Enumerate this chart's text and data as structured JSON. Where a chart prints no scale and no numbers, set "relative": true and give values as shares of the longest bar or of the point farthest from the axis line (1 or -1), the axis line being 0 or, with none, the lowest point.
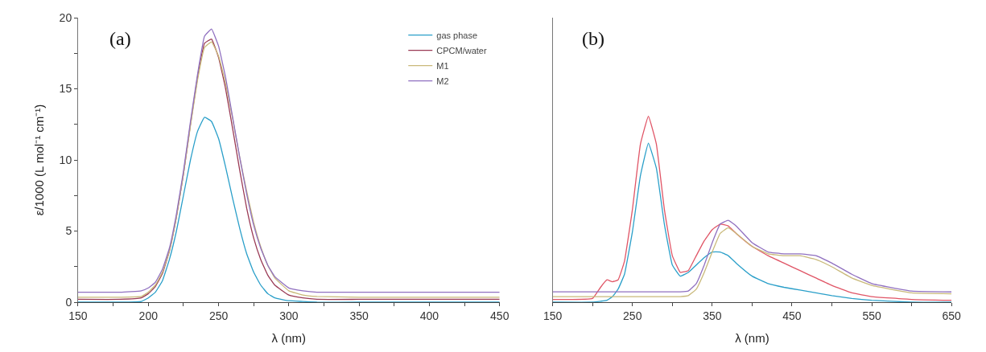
{
  "chart_data": [
    {
      "type": "line",
      "xlabel": "λ (nm)",
      "ylabel": "ε/1000 (L mol⁻¹ cm⁻¹)",
      "annotations": [
        "(a)"
      ],
      "legend": "top right",
      "xlim": [
        150,
        450
      ],
      "xticks": [
        150,
        {
          "value": 175,
          "label": null
        },
        200,
        {
          "value": 225,
          "label": null
        },
        250,
        {
          "value": 275,
          "label": null
        },
        300,
        {
          "value": 325,
          "label": null
        },
        350,
        {
          "value": 375,
          "label": null
        },
        400,
        {
          "value": 425,
          "label": null
        },
        450
      ],
      "ylim": [
        0,
        20
      ],
      "yticks": [
        0,
        {
          "value": 2.5,
          "label": null
        },
        5,
        {
          "value": 7.5,
          "label": null
        },
        10,
        {
          "value": 12.5,
          "label": null
        },
        15,
        {
          "value": 17.5,
          "label": null
        },
        20
      ],
      "x": [
        150,
        180,
        195,
        200,
        205,
        210,
        215,
        220,
        225,
        230,
        235,
        240,
        245,
        250,
        255,
        260,
        265,
        270,
        275,
        280,
        285,
        290,
        300,
        310,
        320,
        350,
        400,
        450
      ],
      "series": [
        {
          "name": "gas phase",
          "color": "#2a9fc9",
          "values": [
            0,
            0,
            0.05,
            0.3,
            0.7,
            1.5,
            3.0,
            5.0,
            7.5,
            10.0,
            12.0,
            13.0,
            12.7,
            11.5,
            9.5,
            7.3,
            5.2,
            3.4,
            2.1,
            1.2,
            0.6,
            0.3,
            0.1,
            0.05,
            0,
            0,
            0,
            0
          ]
        },
        {
          "name": "CPCM/water",
          "color": "#9a3a55",
          "values": [
            0.2,
            0.2,
            0.3,
            0.6,
            1.1,
            2.0,
            3.6,
            6.0,
            9.0,
            12.5,
            15.8,
            18.2,
            18.5,
            17.2,
            15.0,
            12.2,
            9.3,
            6.6,
            4.5,
            3.0,
            1.9,
            1.2,
            0.5,
            0.3,
            0.2,
            0.2,
            0.2,
            0.2
          ]
        },
        {
          "name": "M1",
          "color": "#c9b97a",
          "values": [
            0.35,
            0.35,
            0.4,
            0.7,
            1.2,
            2.1,
            3.6,
            6.0,
            9.0,
            12.4,
            15.6,
            17.9,
            18.3,
            17.3,
            15.4,
            12.9,
            10.2,
            7.8,
            5.6,
            3.9,
            2.6,
            1.7,
            0.8,
            0.5,
            0.4,
            0.35,
            0.35,
            0.35
          ]
        },
        {
          "name": "M2",
          "color": "#9070c0",
          "values": [
            0.7,
            0.7,
            0.8,
            1.0,
            1.4,
            2.3,
            3.8,
            6.2,
            9.2,
            12.7,
            16.0,
            18.7,
            19.2,
            18.0,
            15.8,
            13.0,
            10.2,
            7.6,
            5.4,
            3.8,
            2.6,
            1.8,
            1.0,
            0.8,
            0.7,
            0.7,
            0.7,
            0.7
          ]
        }
      ]
    },
    {
      "type": "line",
      "xlabel": "λ (nm)",
      "annotations": [
        "(b)"
      ],
      "relative": true,
      "xlim": [
        150,
        650
      ],
      "xticks": [
        150,
        {
          "value": 200,
          "label": null
        },
        250,
        {
          "value": 300,
          "label": null
        },
        350,
        {
          "value": 400,
          "label": null
        },
        450,
        {
          "value": 500,
          "label": null
        },
        550,
        {
          "value": 600,
          "label": null
        },
        650
      ],
      "x": [
        150,
        200,
        210,
        218,
        225,
        232,
        240,
        250,
        260,
        270,
        280,
        290,
        300,
        310,
        320,
        330,
        340,
        350,
        360,
        370,
        380,
        400,
        420,
        440,
        460,
        480,
        500,
        525,
        550,
        600,
        650
      ],
      "series": [
        {
          "color": "#2a9fc9",
          "values": [
            0,
            0,
            0.005,
            0.01,
            0.03,
            0.07,
            0.15,
            0.38,
            0.68,
            0.855,
            0.72,
            0.42,
            0.2,
            0.14,
            0.16,
            0.2,
            0.24,
            0.27,
            0.27,
            0.25,
            0.21,
            0.14,
            0.1,
            0.08,
            0.065,
            0.05,
            0.035,
            0.02,
            0.01,
            0,
            0
          ]
        },
        {
          "color": "#e05566",
          "values": [
            0.015,
            0.02,
            0.08,
            0.12,
            0.11,
            0.12,
            0.22,
            0.5,
            0.85,
            1.0,
            0.85,
            0.5,
            0.25,
            0.16,
            0.17,
            0.25,
            0.33,
            0.39,
            0.42,
            0.41,
            0.37,
            0.3,
            0.25,
            0.21,
            0.17,
            0.13,
            0.09,
            0.05,
            0.03,
            0.015,
            0.01
          ]
        },
        {
          "color": "#c9b97a",
          "values": [
            0.03,
            0.03,
            0.03,
            0.03,
            0.03,
            0.03,
            0.03,
            0.03,
            0.03,
            0.03,
            0.03,
            0.03,
            0.03,
            0.03,
            0.035,
            0.07,
            0.16,
            0.27,
            0.37,
            0.4,
            0.37,
            0.3,
            0.26,
            0.25,
            0.25,
            0.23,
            0.19,
            0.13,
            0.09,
            0.05,
            0.045
          ]
        },
        {
          "color": "#9070c0",
          "values": [
            0.056,
            0.056,
            0.056,
            0.056,
            0.056,
            0.056,
            0.056,
            0.056,
            0.056,
            0.056,
            0.056,
            0.056,
            0.056,
            0.056,
            0.06,
            0.1,
            0.2,
            0.32,
            0.42,
            0.44,
            0.41,
            0.32,
            0.27,
            0.26,
            0.26,
            0.25,
            0.21,
            0.15,
            0.1,
            0.06,
            0.055
          ]
        }
      ]
    }
  ]
}
